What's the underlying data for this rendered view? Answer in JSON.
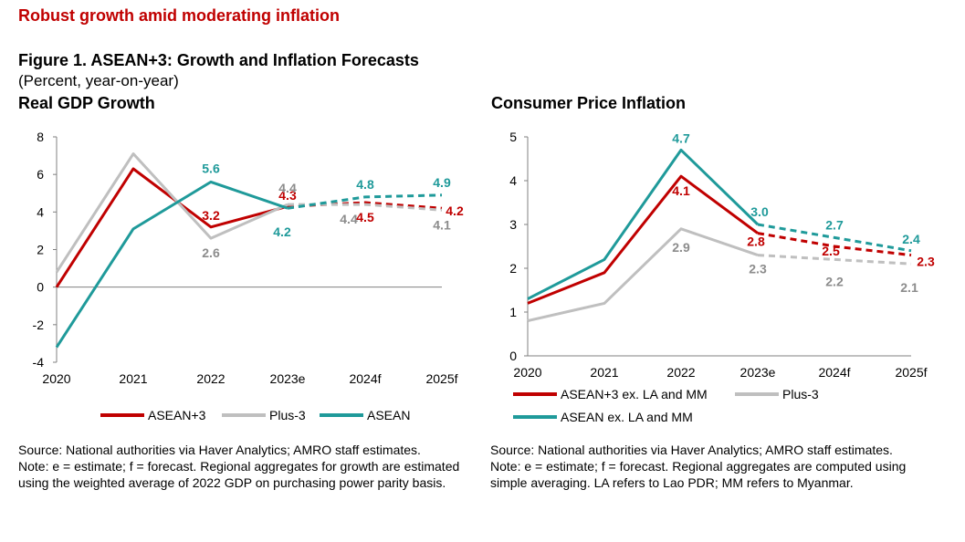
{
  "header": {
    "headline": "Robust growth amid moderating inflation",
    "figure_title": "Figure 1. ASEAN+3: Growth and Inflation Forecasts",
    "figure_subtitle": "(Percent, year-on-year)"
  },
  "left_note": {
    "source": "Source: National authorities via Haver Analytics; AMRO staff estimates.",
    "note": "Note: e = estimate; f = forecast. Regional aggregates for growth are estimated using the weighted average of 2022 GDP on purchasing power parity basis."
  },
  "right_note": {
    "source": "Source: National authorities via Haver Analytics; AMRO staff estimates.",
    "note": "Note: e = estimate; f = forecast. Regional aggregates are computed using simple averaging. LA refers to Lao PDR; MM refers to Myanmar."
  },
  "chart_data": [
    {
      "type": "line",
      "title": "Real GDP Growth",
      "categories": [
        "2020",
        "2021",
        "2022",
        "2023e",
        "2024f",
        "2025f"
      ],
      "ylim": [
        -4,
        8
      ],
      "yticks": [
        "8",
        "6",
        "4",
        "2",
        "0",
        "-2",
        "-4"
      ],
      "forecast_from_index": 3,
      "legend_position": "bottom",
      "series": [
        {
          "name": "ASEAN+3",
          "color": "#c00000",
          "values": [
            0.0,
            6.3,
            3.2,
            4.3,
            4.5,
            4.2
          ],
          "labels": [
            "",
            "",
            "3.2",
            "4.3",
            "4.5",
            "4.2"
          ]
        },
        {
          "name": "Plus-3",
          "color": "#bfbfbf",
          "values": [
            0.8,
            7.1,
            2.6,
            4.4,
            4.4,
            4.1
          ],
          "labels": [
            "",
            "",
            "2.6",
            "4.4",
            "4.4",
            "4.1"
          ]
        },
        {
          "name": "ASEAN",
          "color": "#1f9a9a",
          "values": [
            -3.2,
            3.1,
            5.6,
            4.2,
            4.8,
            4.9
          ],
          "labels": [
            "",
            "",
            "5.6",
            "4.2",
            "4.8",
            "4.9"
          ]
        }
      ]
    },
    {
      "type": "line",
      "title": "Consumer Price Inflation",
      "categories": [
        "2020",
        "2021",
        "2022",
        "2023e",
        "2024f",
        "2025f"
      ],
      "ylim": [
        0,
        5
      ],
      "yticks": [
        "5",
        "4",
        "3",
        "2",
        "1",
        "0"
      ],
      "forecast_from_index": 3,
      "legend_position": "bottom",
      "series": [
        {
          "name": "ASEAN+3 ex. LA and MM",
          "color": "#c00000",
          "values": [
            1.2,
            1.9,
            4.1,
            2.8,
            2.5,
            2.3
          ],
          "labels": [
            "",
            "",
            "4.1",
            "2.8",
            "2.5",
            "2.3"
          ]
        },
        {
          "name": "Plus-3",
          "color": "#bfbfbf",
          "values": [
            0.8,
            1.2,
            2.9,
            2.3,
            2.2,
            2.1
          ],
          "labels": [
            "",
            "",
            "2.9",
            "2.3",
            "2.2",
            "2.1"
          ]
        },
        {
          "name": "ASEAN ex. LA and MM",
          "color": "#1f9a9a",
          "values": [
            1.3,
            2.2,
            4.7,
            3.0,
            2.7,
            2.4
          ],
          "labels": [
            "",
            "",
            "4.7",
            "3.0",
            "2.7",
            "2.4"
          ]
        }
      ]
    }
  ]
}
